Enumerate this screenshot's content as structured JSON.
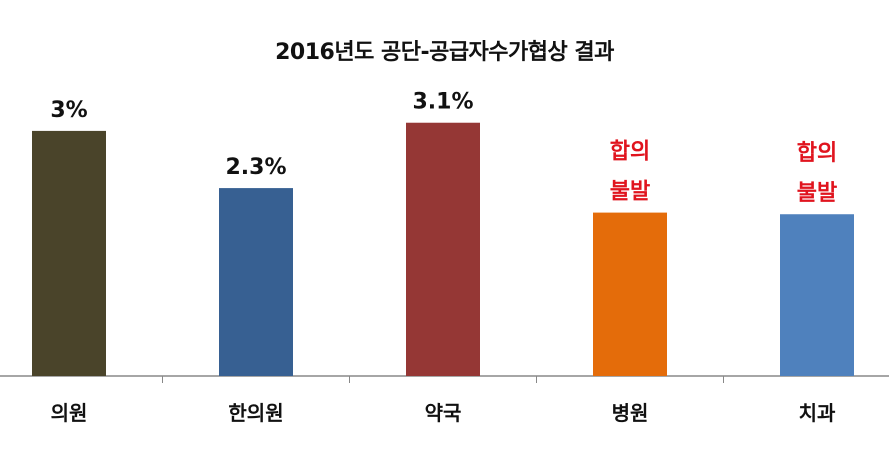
{
  "chart_data": {
    "type": "bar",
    "title": "2016년도 공단-공급자수가협상 결과",
    "categories": [
      "의원",
      "한의원",
      "약국",
      "병원",
      "치과"
    ],
    "values": [
      3.0,
      2.3,
      3.1,
      2.0,
      1.98
    ],
    "data_labels": [
      "3%",
      "2.3%",
      "3.1%",
      "합의\n불발",
      "합의\n불발"
    ],
    "colors": [
      "#4a442a",
      "#376092",
      "#953735",
      "#e46c0a",
      "#4f81bd"
    ],
    "label_colors": [
      "#111111",
      "#111111",
      "#111111",
      "#e0141e",
      "#e0141e"
    ],
    "ylim": [
      0,
      3.2
    ],
    "grid": false,
    "legend": "none",
    "xlabel": "",
    "ylabel": ""
  }
}
